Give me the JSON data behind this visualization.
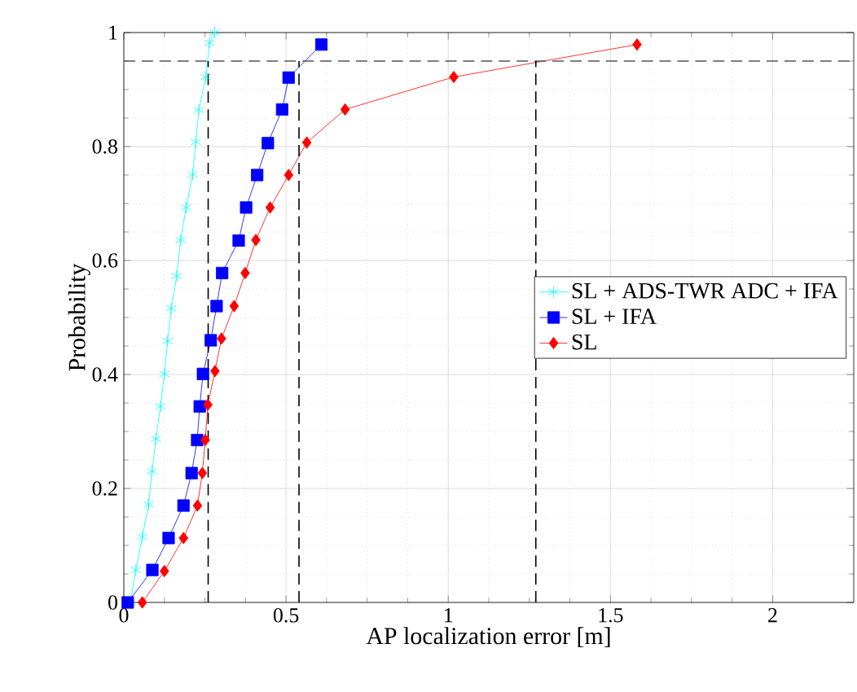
{
  "chart_data": {
    "type": "line",
    "xlabel": "AP localization error [m]",
    "ylabel": "Probability",
    "xlim": [
      0,
      2.25
    ],
    "ylim": [
      0,
      1
    ],
    "xticks": [
      0,
      0.5,
      1,
      1.5,
      2
    ],
    "yticks": [
      0,
      0.2,
      0.4,
      0.6,
      0.8,
      1
    ],
    "grid": true,
    "legend": "right",
    "line_style": "solid",
    "series": [
      {
        "name": "SL + ADS-TWR ADC + IFA",
        "color": "#00ffff",
        "marker": "cross",
        "x": [
          0.02,
          0.037,
          0.057,
          0.076,
          0.087,
          0.099,
          0.113,
          0.125,
          0.135,
          0.146,
          0.163,
          0.175,
          0.192,
          0.212,
          0.222,
          0.231,
          0.253,
          0.264,
          0.28
        ],
        "values": [
          0,
          0.057,
          0.115,
          0.172,
          0.23,
          0.287,
          0.344,
          0.401,
          0.459,
          0.516,
          0.573,
          0.636,
          0.693,
          0.751,
          0.808,
          0.864,
          0.922,
          0.982,
          1
        ]
      },
      {
        "name": "SL + IFA",
        "color": "#0000ff",
        "marker": "square",
        "x": [
          0.012,
          0.088,
          0.138,
          0.184,
          0.209,
          0.226,
          0.234,
          0.244,
          0.268,
          0.286,
          0.303,
          0.354,
          0.377,
          0.411,
          0.444,
          0.488,
          0.508,
          0.609
        ],
        "values": [
          0,
          0.057,
          0.113,
          0.17,
          0.227,
          0.285,
          0.344,
          0.401,
          0.46,
          0.52,
          0.578,
          0.635,
          0.693,
          0.75,
          0.806,
          0.865,
          0.921,
          0.979
        ]
      },
      {
        "name": "SL",
        "color": "#ff0000",
        "marker": "diamond",
        "x": [
          0.057,
          0.125,
          0.184,
          0.227,
          0.242,
          0.251,
          0.259,
          0.281,
          0.301,
          0.34,
          0.374,
          0.407,
          0.451,
          0.508,
          0.564,
          0.682,
          1.017,
          1.582
        ],
        "values": [
          0,
          0.055,
          0.113,
          0.17,
          0.227,
          0.285,
          0.347,
          0.406,
          0.463,
          0.52,
          0.578,
          0.636,
          0.693,
          0.75,
          0.807,
          0.865,
          0.922,
          0.979
        ]
      }
    ],
    "ref_lines": [
      {
        "axis": "y",
        "value": 0.95,
        "color": "#555555",
        "line_style": "dashed"
      },
      {
        "axis": "x",
        "value": 0.26,
        "color": "#000000",
        "line_style": "dashed"
      },
      {
        "axis": "x",
        "value": 0.54,
        "color": "#000000",
        "line_style": "dashed"
      },
      {
        "axis": "x",
        "value": 1.27,
        "color": "#000000",
        "line_style": "dashed"
      }
    ]
  }
}
